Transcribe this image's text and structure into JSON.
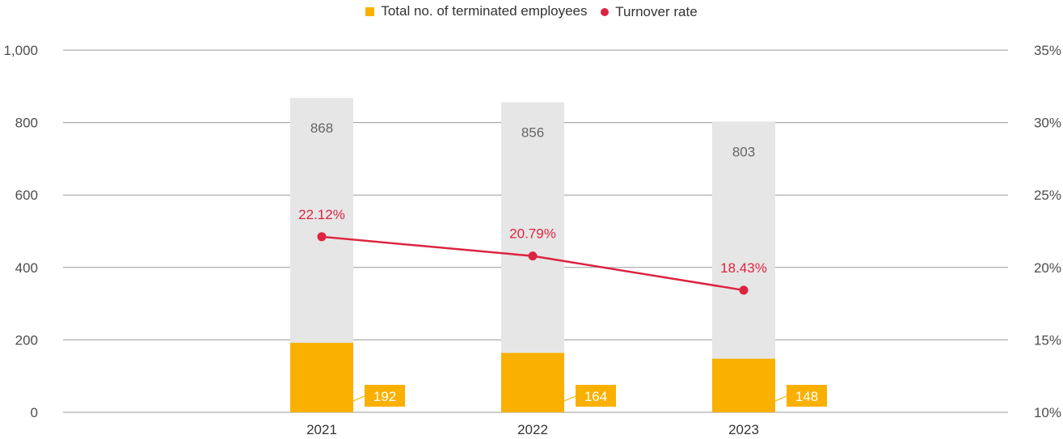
{
  "chart_data": {
    "type": "bar",
    "categories": [
      "2021",
      "2022",
      "2023"
    ],
    "series": [
      {
        "name": "Total no. of terminated employees",
        "kind": "bar",
        "axis": "left",
        "values": [
          192,
          164,
          148
        ],
        "labels": [
          "192",
          "164",
          "148"
        ]
      },
      {
        "name": "Turnover rate",
        "kind": "line",
        "axis": "right",
        "values": [
          22.12,
          20.79,
          18.43
        ],
        "labels": [
          "22.12%",
          "20.79%",
          "18.43%"
        ]
      }
    ],
    "background_bars": {
      "values": [
        868,
        856,
        803
      ],
      "labels": [
        "868",
        "856",
        "803"
      ]
    },
    "y_left": {
      "min": 0,
      "max": 1000,
      "ticks": [
        0,
        200,
        400,
        600,
        800,
        1000
      ],
      "tick_labels": [
        "0",
        "200",
        "400",
        "600",
        "800",
        "1,000"
      ]
    },
    "y_right": {
      "min": 10,
      "max": 35,
      "ticks": [
        10,
        15,
        20,
        25,
        30,
        35
      ],
      "tick_labels": [
        "10%",
        "15%",
        "20%",
        "25%",
        "30%",
        "35%"
      ]
    },
    "grid": true,
    "legend": "top-center",
    "colors": {
      "bar": "#f9b000",
      "background_bar": "#e6e6e6",
      "line": "#dc2440",
      "grid": "#9a9a9a",
      "text": "#4d4d4d",
      "bar_label_text": "#ffffff",
      "background_label_text": "#666666"
    }
  },
  "legend": {
    "bar_label": "Total no. of terminated employees",
    "line_label": "Turnover rate"
  }
}
